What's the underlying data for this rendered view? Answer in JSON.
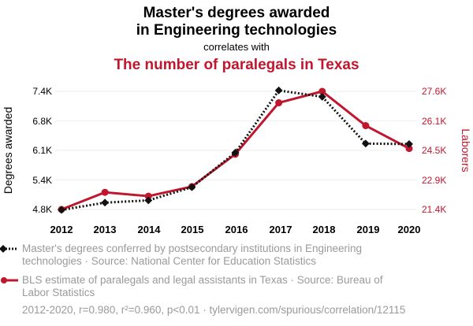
{
  "header": {
    "title_line1": "Master's degrees awarded",
    "title_line2": "in Engineering technologies",
    "correlates": "correlates with",
    "title2": "The number of paralegals in Texas"
  },
  "colors": {
    "series1": "#111111",
    "series2": "#c0172e",
    "muted": "#9a9a9a",
    "grid": "#eeeeee"
  },
  "chart_data": {
    "type": "line",
    "x": [
      2012,
      2013,
      2014,
      2015,
      2016,
      2017,
      2018,
      2019,
      2020
    ],
    "series": [
      {
        "name": "Master's degrees conferred by postsecondary institutions in Engineering technologies",
        "axis": "left",
        "marker": "diamond",
        "line_style": "dotted",
        "values": [
          4790,
          4950,
          5000,
          5290,
          6050,
          7420,
          7280,
          6250,
          6240
        ]
      },
      {
        "name": "BLS estimate of paralegals and legal assistants in Texas",
        "axis": "right",
        "marker": "circle",
        "line_style": "solid",
        "values": [
          21400,
          22300,
          22100,
          22600,
          24300,
          27000,
          27600,
          25800,
          24600
        ]
      }
    ],
    "ylabel_left": "Degrees awarded",
    "ylabel_right": "Laborers",
    "ylim_left": [
      4800,
      7400
    ],
    "ylim_right": [
      21400,
      27600
    ],
    "yticks_left": [
      "7.4K",
      "6.8K",
      "6.1K",
      "5.4K",
      "4.8K"
    ],
    "yticks_right": [
      "27.6K",
      "26.1K",
      "24.5K",
      "22.9K",
      "21.4K"
    ],
    "xticks": [
      "2012",
      "2013",
      "2014",
      "2015",
      "2016",
      "2017",
      "2018",
      "2019",
      "2020"
    ],
    "grid": "horizontal"
  },
  "legend": {
    "item1_line1": "Master's degrees conferred by postsecondary institutions in Engineering",
    "item1_line2": "technologies · Source: National Center for Education Statistics",
    "item2_line1": "BLS estimate of paralegals and legal assistants in Texas · Source: Bureau of",
    "item2_line2": "Labor Statistics"
  },
  "footer": {
    "text": "2012-2020, r=0.980, r²=0.960, p<0.01 · tylervigen.com/spurious/correlation/12115"
  }
}
